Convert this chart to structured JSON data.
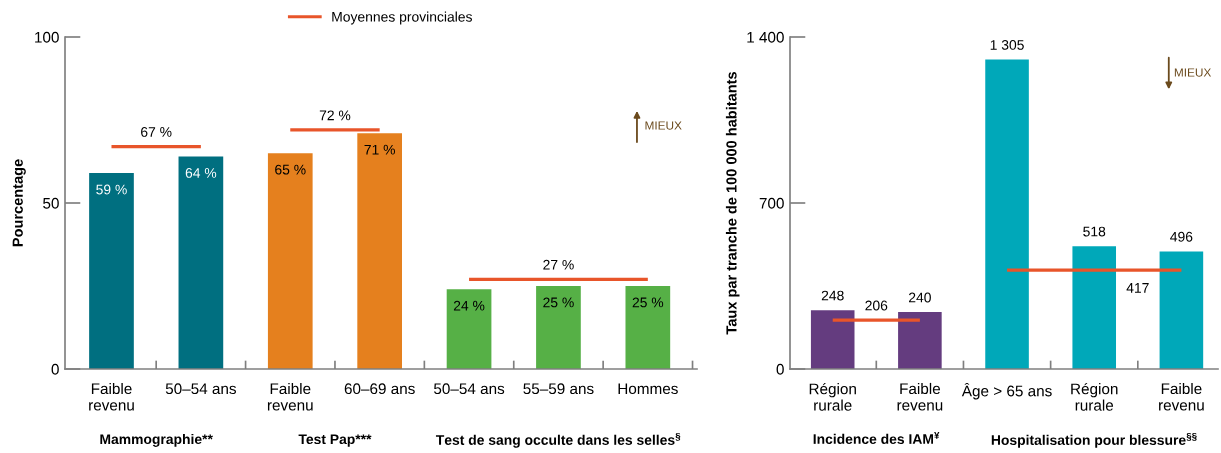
{
  "chart_data": [
    {
      "type": "bar",
      "ylabel": "Pourcentage",
      "categories": [
        "Faible\nrevenu",
        "50–54 ans",
        "Faible\nrevenu",
        "60–69 ans",
        "50–54 ans",
        "55–59 ans",
        "Hommes"
      ],
      "series": [
        {
          "color": "#006f80",
          "values": [
            59,
            64,
            null,
            null,
            null,
            null,
            null
          ],
          "value_labels": [
            "59 %",
            "64 %",
            null,
            null,
            null,
            null,
            null
          ]
        },
        {
          "color": "#e5801e",
          "values": [
            null,
            null,
            65,
            71,
            null,
            null,
            null
          ],
          "value_labels": [
            null,
            null,
            "65 %",
            "71 %",
            null,
            null,
            null
          ]
        },
        {
          "color": "#56b046",
          "values": [
            null,
            null,
            null,
            null,
            24,
            25,
            25
          ],
          "value_labels": [
            null,
            null,
            null,
            null,
            "24 %",
            "25 %",
            "25 %"
          ]
        },
        {
          "type": "line",
          "name": "Moyennes provinciales",
          "color": "#e8552a",
          "values": [
            67,
            67,
            null,
            null,
            null,
            null,
            null
          ]
        },
        {
          "type": "line",
          "color": "#e8552a",
          "values": [
            null,
            null,
            72,
            72,
            null,
            null,
            null
          ]
        },
        {
          "type": "line",
          "color": "#e8552a",
          "values": [
            null,
            null,
            null,
            null,
            27,
            27,
            27
          ]
        }
      ],
      "ylim": [
        0,
        100
      ],
      "yticks": [
        0,
        50,
        100
      ],
      "legend": "top",
      "annotations": [
        {
          "text": "67 %",
          "y": 67
        },
        {
          "text": "72 %",
          "y": 72
        },
        {
          "text": "27 %",
          "y": 27
        },
        "Mammographie**",
        "Test Pap***",
        "Test de sang occulte dans les selles$^{§}$",
        "MIEUX"
      ]
    },
    {
      "type": "bar",
      "ylabel": "Taux par tranche de 100 000 habitants",
      "categories": [
        "Région\nrurale",
        "Faible\nrevenu",
        "Âge > 65 ans",
        "Région\nrurale",
        "Faible\nrevenu"
      ],
      "series": [
        {
          "color": "#643c7f",
          "values": [
            248,
            240,
            null,
            null,
            null
          ],
          "value_labels": [
            "248",
            "240",
            null,
            null,
            null
          ]
        },
        {
          "color": "#00a8b9",
          "values": [
            null,
            null,
            1305,
            518,
            496
          ],
          "value_labels": [
            null,
            null,
            "1 305",
            "518",
            "496"
          ]
        },
        {
          "type": "line",
          "color": "#e8552a",
          "values": [
            206,
            206,
            null,
            null,
            null
          ]
        },
        {
          "type": "line",
          "color": "#e8552a",
          "values": [
            null,
            null,
            417,
            417,
            417
          ]
        }
      ],
      "ylim": [
        0,
        1400
      ],
      "yticks": [
        0,
        700,
        {
          "value": 1400,
          "label": "1 400"
        }
      ],
      "annotations": [
        {
          "text": "206",
          "y": 206
        },
        {
          "text": "417",
          "y": 417
        },
        "Incidence des IAM$^{¥}$",
        "Hospitalisation pour blessure$^{§§}$",
        "MIEUX"
      ]
    }
  ]
}
